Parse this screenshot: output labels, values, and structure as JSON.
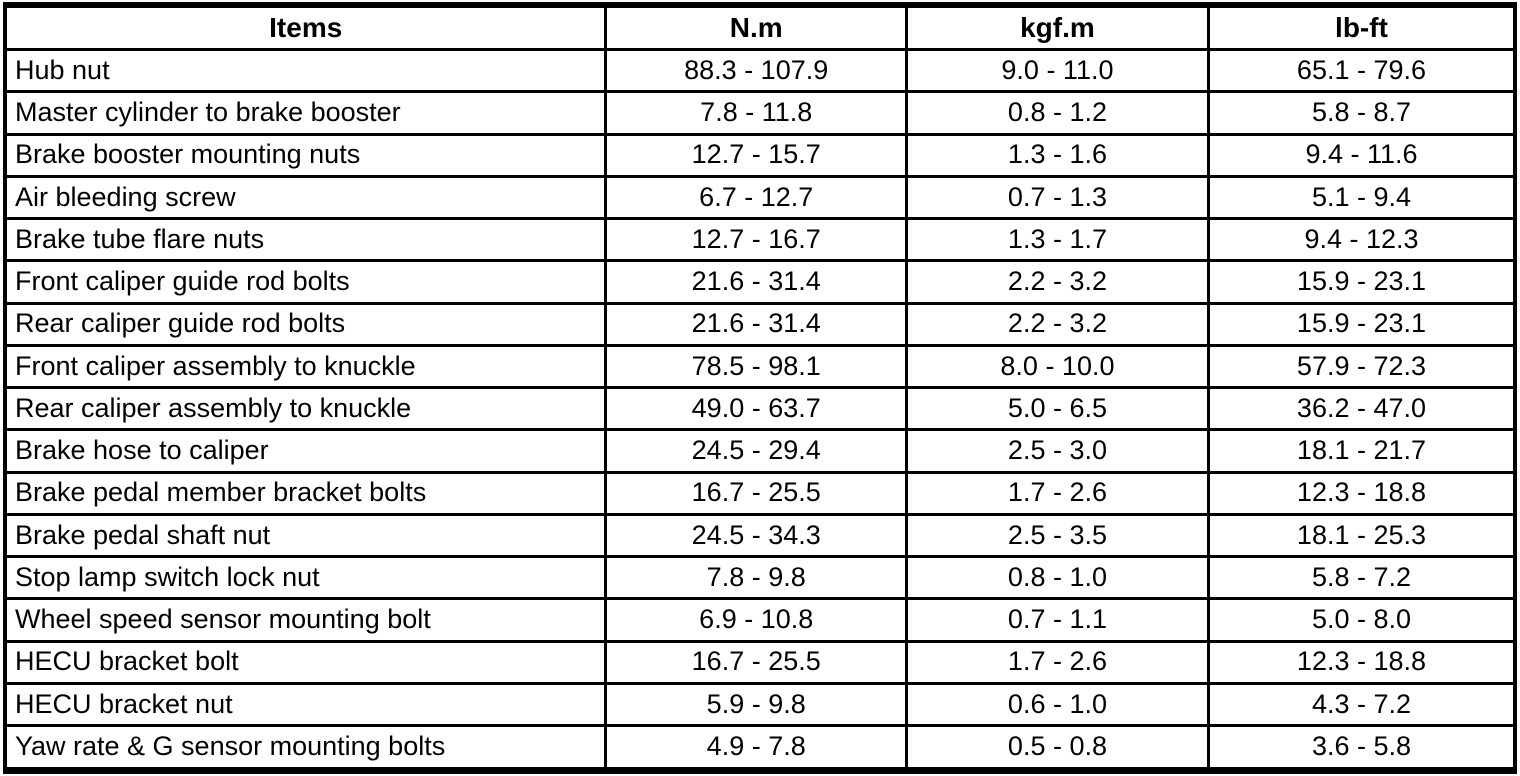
{
  "colors": {
    "border": "#000000",
    "background": "#ffffff",
    "text": "#000000"
  },
  "table": {
    "columns": [
      {
        "key": "item",
        "label": "Items"
      },
      {
        "key": "nm",
        "label": "N.m"
      },
      {
        "key": "kgfm",
        "label": "kgf.m"
      },
      {
        "key": "lbft",
        "label": "lb-ft"
      }
    ],
    "rows": [
      {
        "item": "Hub nut",
        "nm": "88.3 - 107.9",
        "kgfm": "9.0 - 11.0",
        "lbft": "65.1 - 79.6"
      },
      {
        "item": "Master cylinder to brake booster",
        "nm": "7.8 - 11.8",
        "kgfm": "0.8 - 1.2",
        "lbft": "5.8 - 8.7"
      },
      {
        "item": "Brake booster mounting nuts",
        "nm": "12.7 - 15.7",
        "kgfm": "1.3 - 1.6",
        "lbft": "9.4 - 11.6"
      },
      {
        "item": "Air bleeding screw",
        "nm": "6.7 - 12.7",
        "kgfm": "0.7 - 1.3",
        "lbft": "5.1 - 9.4"
      },
      {
        "item": "Brake tube flare nuts",
        "nm": "12.7 - 16.7",
        "kgfm": "1.3 - 1.7",
        "lbft": "9.4 - 12.3"
      },
      {
        "item": "Front caliper guide rod bolts",
        "nm": "21.6 - 31.4",
        "kgfm": "2.2 - 3.2",
        "lbft": "15.9 - 23.1"
      },
      {
        "item": "Rear caliper guide rod bolts",
        "nm": "21.6 - 31.4",
        "kgfm": "2.2 - 3.2",
        "lbft": "15.9 - 23.1"
      },
      {
        "item": "Front caliper assembly to knuckle",
        "nm": "78.5 - 98.1",
        "kgfm": "8.0 - 10.0",
        "lbft": "57.9 - 72.3"
      },
      {
        "item": "Rear caliper assembly to knuckle",
        "nm": "49.0 - 63.7",
        "kgfm": "5.0 - 6.5",
        "lbft": "36.2 - 47.0"
      },
      {
        "item": "Brake hose to caliper",
        "nm": "24.5 - 29.4",
        "kgfm": "2.5 - 3.0",
        "lbft": "18.1 - 21.7"
      },
      {
        "item": "Brake pedal member bracket bolts",
        "nm": "16.7 - 25.5",
        "kgfm": "1.7 - 2.6",
        "lbft": "12.3 - 18.8"
      },
      {
        "item": "Brake pedal shaft nut",
        "nm": "24.5 - 34.3",
        "kgfm": "2.5 - 3.5",
        "lbft": "18.1 - 25.3"
      },
      {
        "item": "Stop lamp switch lock nut",
        "nm": "7.8 - 9.8",
        "kgfm": "0.8 - 1.0",
        "lbft": "5.8 - 7.2"
      },
      {
        "item": "Wheel speed sensor mounting bolt",
        "nm": "6.9 - 10.8",
        "kgfm": "0.7 - 1.1",
        "lbft": "5.0 - 8.0"
      },
      {
        "item": "HECU bracket bolt",
        "nm": "16.7 - 25.5",
        "kgfm": "1.7 - 2.6",
        "lbft": "12.3 - 18.8"
      },
      {
        "item": "HECU bracket nut",
        "nm": "5.9 - 9.8",
        "kgfm": "0.6 - 1.0",
        "lbft": "4.3 - 7.2"
      },
      {
        "item": "Yaw rate & G sensor mounting bolts",
        "nm": "4.9 - 7.8",
        "kgfm": "0.5 - 0.8",
        "lbft": "3.6 - 5.8"
      }
    ]
  }
}
